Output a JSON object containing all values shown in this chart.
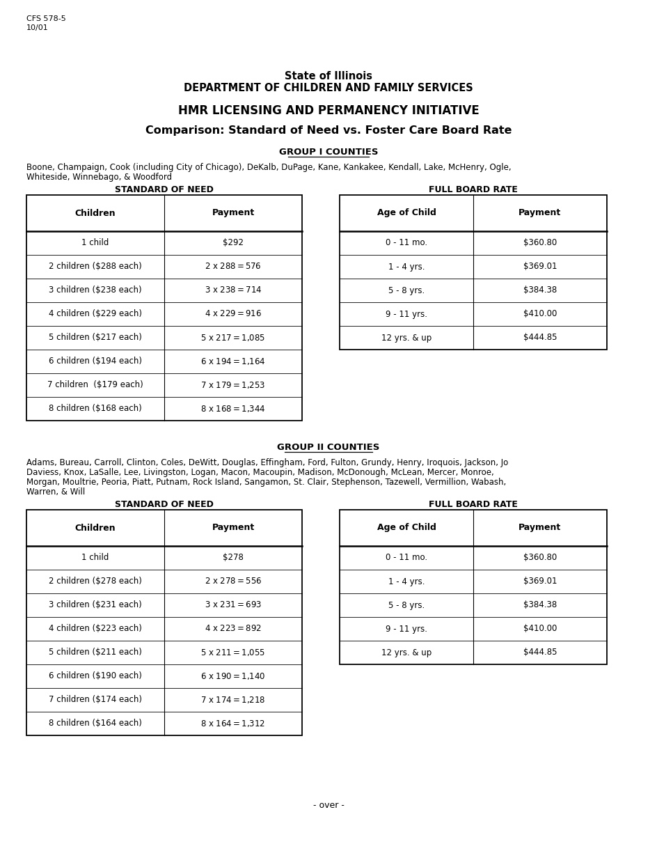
{
  "form_id_line1": "CFS 578-5",
  "form_id_line2": "10/01",
  "header_line1": "State of Illinois",
  "header_line2": "DEPARTMENT OF CHILDREN AND FAMILY SERVICES",
  "header_line3": "HMR LICENSING AND PERMANENCY INITIATIVE",
  "header_line4": "Comparison: Standard of Need vs. Foster Care Board Rate",
  "group1_header": "GROUP I COUNTIES",
  "group1_counties_line1": "Boone, Champaign, Cook (including City of Chicago), DeKalb, DuPage, Kane, Kankakee, Kendall, Lake, McHenry, Ogle,",
  "group1_counties_line2": "Whiteside, Winnebago, & Woodford",
  "group1_son_label": "STANDARD OF NEED",
  "group1_fbr_label": "FULL BOARD RATE",
  "group1_son_headers": [
    "Children",
    "Payment"
  ],
  "group1_son_rows": [
    [
      "1 child",
      "$292"
    ],
    [
      "2 children ($288 each)",
      "2 x $288 = $576"
    ],
    [
      "3 children ($238 each)",
      "3 x $238 = $714"
    ],
    [
      "4 children ($229 each)",
      "4 x $229 = $916"
    ],
    [
      "5 children ($217 each)",
      "5 x $217 = $1,085"
    ],
    [
      "6 children ($194 each)",
      "6 x $194 = $1,164"
    ],
    [
      "7 children  ($179 each)",
      "7 x $179 = $1,253"
    ],
    [
      "8 children ($168 each)",
      "8 x $168 = $1,344"
    ]
  ],
  "group1_fbr_headers": [
    "Age of Child",
    "Payment"
  ],
  "group1_fbr_rows": [
    [
      "0 - 11 mo.",
      "$360.80"
    ],
    [
      "1 - 4 yrs.",
      "$369.01"
    ],
    [
      "5 - 8 yrs.",
      "$384.38"
    ],
    [
      "9 - 11 yrs.",
      "$410.00"
    ],
    [
      "12 yrs. & up",
      "$444.85"
    ]
  ],
  "group2_header": "GROUP II COUNTIES",
  "group2_counties_line1": "Adams, Bureau, Carroll, Clinton, Coles, DeWitt, Douglas, Effingham, Ford, Fulton, Grundy, Henry, Iroquois, Jackson, Jo",
  "group2_counties_line2": "Daviess, Knox, LaSalle, Lee, Livingston, Logan, Macon, Macoupin, Madison, McDonough, McLean, Mercer, Monroe,",
  "group2_counties_line3": "Morgan, Moultrie, Peoria, Piatt, Putnam, Rock Island, Sangamon, St. Clair, Stephenson, Tazewell, Vermillion, Wabash,",
  "group2_counties_line4": "Warren, & Will",
  "group2_son_label": "STANDARD OF NEED",
  "group2_fbr_label": "FULL BOARD RATE",
  "group2_son_headers": [
    "Children",
    "Payment"
  ],
  "group2_son_rows": [
    [
      "1 child",
      "$278"
    ],
    [
      "2 children ($278 each)",
      "2 x $278 = $556"
    ],
    [
      "3 children ($231 each)",
      "3 x $231 = $693"
    ],
    [
      "4 children ($223 each)",
      "4 x $223 = $892"
    ],
    [
      "5 children ($211 each)",
      "5 x $211 = $1,055"
    ],
    [
      "6 children ($190 each)",
      "6 x $190 = $1,140"
    ],
    [
      "7 children ($174 each)",
      "7 x $174 = $1,218"
    ],
    [
      "8 children ($164 each)",
      "8 x $164 = $1,312"
    ]
  ],
  "group2_fbr_headers": [
    "Age of Child",
    "Payment"
  ],
  "group2_fbr_rows": [
    [
      "0 - 11 mo.",
      "$360.80"
    ],
    [
      "1 - 4 yrs.",
      "$369.01"
    ],
    [
      "5 - 8 yrs.",
      "$384.38"
    ],
    [
      "9 - 11 yrs.",
      "$410.00"
    ],
    [
      "12 yrs. & up",
      "$444.85"
    ]
  ],
  "footer": "- over -",
  "bg_color": "#ffffff",
  "text_color": "#000000"
}
